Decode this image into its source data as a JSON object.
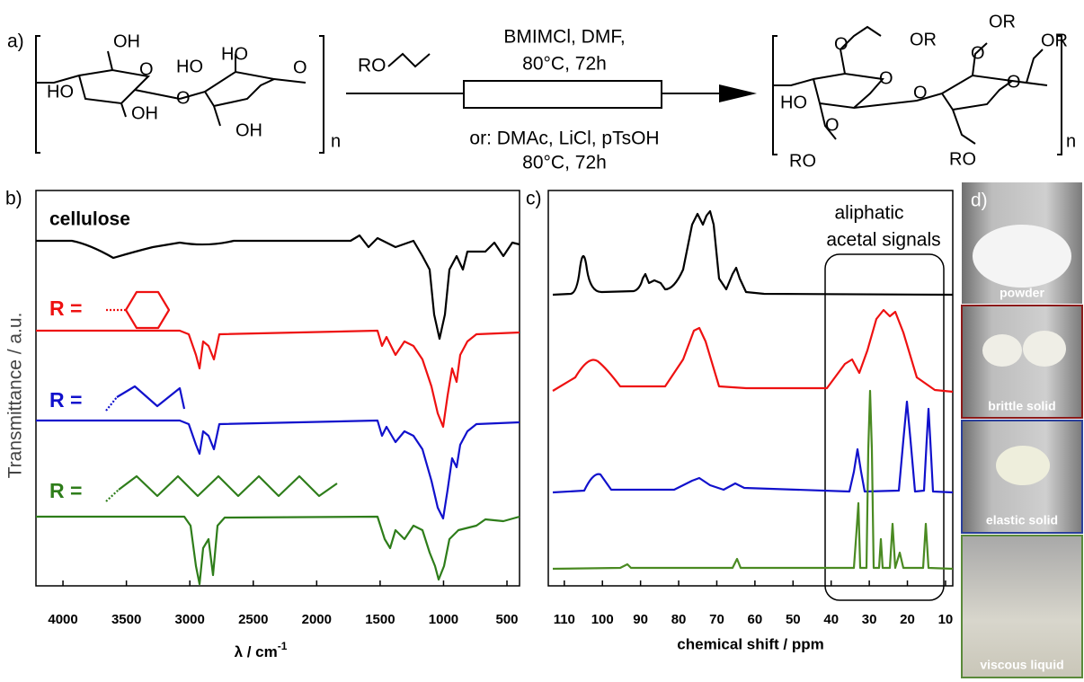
{
  "panel_a": {
    "label": "a)",
    "reactant": {
      "atoms": [
        "OH",
        "HO",
        "HO",
        "HO",
        "OH",
        "OH",
        "O",
        "O",
        "O"
      ],
      "n": "n"
    },
    "reagent": "RO",
    "conditions_top": [
      "BMIMCl, DMF,",
      "80°C, 72h"
    ],
    "conditions_bottom": [
      "or: DMAc, LiCl, pTsOH",
      "80°C, 72h"
    ],
    "product": {
      "atoms": [
        "OR",
        "OR",
        "OR",
        "HO",
        "O",
        "O",
        "O",
        "O",
        "O",
        "O",
        "RO",
        "RO"
      ],
      "n": "n"
    }
  },
  "panel_b": {
    "label": "b)",
    "y_label": "Transmittance / a.u.",
    "x_label": {
      "text": "λ / cm",
      "superscript": "-1"
    },
    "xlim": [
      4213,
      401
    ],
    "xticks": [
      4000,
      3500,
      3000,
      2500,
      2000,
      1500,
      1000,
      500
    ],
    "traces": [
      {
        "name": "cellulose",
        "color": "#000000"
      },
      {
        "name": "R =",
        "color": "#ee1111"
      },
      {
        "name": "R =",
        "color": "#1111cc"
      },
      {
        "name": "R =",
        "color": "#2e7d1a"
      }
    ]
  },
  "panel_c": {
    "label": "c)",
    "annotation": [
      "aliphatic",
      "acetal signals"
    ],
    "xlim": [
      114.2,
      8.1
    ],
    "xticks": [
      110,
      100,
      90,
      80,
      70,
      60,
      50,
      40,
      30,
      20,
      10
    ],
    "x_label": "chemical shift / ppm",
    "trace_colors": [
      "#000000",
      "#ee1111",
      "#1111cc",
      "#4a8a22"
    ]
  },
  "panel_d": {
    "label": "d)",
    "photos": [
      "powder",
      "brittle solid",
      "elastic solid",
      "viscous liquid"
    ]
  }
}
